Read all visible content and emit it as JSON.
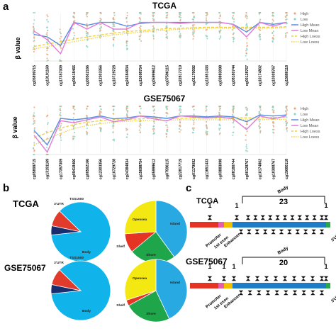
{
  "panel_labels": {
    "a": "a",
    "b": "b",
    "c": "c"
  },
  "panel_a": {
    "ylabel": "β value",
    "probes": [
      "cg05899715",
      "cg13191169",
      "cg17357309",
      "cg09418466",
      "cg00502166",
      "cg12303356",
      "cg10729728",
      "cg24384834",
      "cg15698754",
      "cg05999612",
      "cg07596115",
      "cg22817719",
      "cg01179092",
      "cg11651433",
      "cg03883098",
      "cg08180744",
      "cg00128767",
      "cg10174802",
      "cg10308767",
      "cg15680118"
    ],
    "colors": {
      "high": "#f0a070",
      "low": "#7fd4c4",
      "high_mean": "#5a8ee0",
      "low_mean": "#e07ad8",
      "high_loess": "#f0d040",
      "low_loess": "#f0d040"
    },
    "legend": [
      "High",
      "Low",
      "High Mean",
      "Low Mean",
      "High Loess",
      "Low Loess"
    ],
    "charts": [
      {
        "title": "TCGA",
        "high_mean": [
          0.55,
          0.5,
          0.32,
          0.8,
          0.74,
          0.8,
          0.8,
          0.72,
          0.78,
          0.8,
          0.8,
          0.8,
          0.8,
          0.8,
          0.8,
          0.76,
          0.6,
          0.8,
          0.76,
          0.8
        ],
        "low_mean": [
          0.62,
          0.44,
          0.15,
          0.8,
          0.66,
          0.8,
          0.66,
          0.66,
          0.8,
          0.8,
          0.8,
          0.78,
          0.8,
          0.8,
          0.8,
          0.76,
          0.5,
          0.8,
          0.72,
          0.8
        ],
        "high_loess": [
          0.3,
          0.35,
          0.4,
          0.45,
          0.5,
          0.54,
          0.58,
          0.61,
          0.63,
          0.65,
          0.67,
          0.68,
          0.69,
          0.7,
          0.7,
          0.7,
          0.7,
          0.7,
          0.7,
          0.71
        ],
        "low_loess": [
          0.25,
          0.3,
          0.35,
          0.4,
          0.45,
          0.5,
          0.54,
          0.57,
          0.6,
          0.62,
          0.64,
          0.66,
          0.67,
          0.68,
          0.68,
          0.68,
          0.68,
          0.68,
          0.68,
          0.69
        ]
      },
      {
        "title": "GSE75067",
        "high_mean": [
          0.5,
          0.2,
          0.75,
          0.72,
          0.75,
          0.8,
          0.74,
          0.76,
          0.8,
          0.78,
          0.75,
          0.8,
          0.8,
          0.78,
          0.8,
          0.78,
          0.68,
          0.82,
          0.8,
          0.82
        ],
        "low_mean": [
          0.4,
          0.05,
          0.7,
          0.66,
          0.72,
          0.78,
          0.68,
          0.72,
          0.8,
          0.74,
          0.7,
          0.8,
          0.78,
          0.76,
          0.78,
          0.74,
          0.52,
          0.8,
          0.74,
          0.8
        ],
        "high_loess": [
          0.35,
          0.45,
          0.55,
          0.62,
          0.67,
          0.7,
          0.72,
          0.73,
          0.74,
          0.75,
          0.75,
          0.75,
          0.76,
          0.76,
          0.76,
          0.76,
          0.76,
          0.76,
          0.77,
          0.77
        ],
        "low_loess": [
          0.2,
          0.32,
          0.44,
          0.54,
          0.6,
          0.64,
          0.67,
          0.69,
          0.7,
          0.71,
          0.71,
          0.72,
          0.72,
          0.72,
          0.72,
          0.72,
          0.72,
          0.72,
          0.73,
          0.73
        ]
      }
    ]
  },
  "panel_b": {
    "rows": [
      {
        "title": "TCGA",
        "gene_pie": [
          {
            "label": "Body",
            "value": 86,
            "color": "#10b4ea"
          },
          {
            "label": "3'UTR",
            "value": 5,
            "color": "#1a2d6e"
          },
          {
            "label": "TSS1500",
            "value": 9,
            "color": "#e13b2b"
          }
        ],
        "island_pie": [
          {
            "label": "Island",
            "value": 40,
            "color": "#29a9e1"
          },
          {
            "label": "Shore",
            "value": 24,
            "color": "#1fa64a"
          },
          {
            "label": "Shelf",
            "value": 10,
            "color": "#e53324"
          },
          {
            "label": "Opensea",
            "value": 26,
            "color": "#f4e813"
          }
        ]
      },
      {
        "title": "GSE75067",
        "gene_pie": [
          {
            "label": "Body",
            "value": 86,
            "color": "#10b4ea"
          },
          {
            "label": "3'UTR",
            "value": 5,
            "color": "#1a2d6e"
          },
          {
            "label": "TSS1500",
            "value": 9,
            "color": "#e13b2b"
          }
        ],
        "island_pie": [
          {
            "label": "Island",
            "value": 43,
            "color": "#29a9e1"
          },
          {
            "label": "Shore",
            "value": 24,
            "color": "#1fa64a"
          },
          {
            "label": "Shelf",
            "value": 3,
            "color": "#e53324"
          },
          {
            "label": "Opensea",
            "value": 30,
            "color": "#f4e813"
          }
        ]
      }
    ],
    "labels_visible": {
      "gene": [
        "Body",
        "3'UTR",
        "TSS1500"
      ],
      "island": [
        "Island",
        "Shore",
        "Shelf",
        "Opensea"
      ]
    }
  },
  "panel_c": {
    "rows": [
      {
        "title": "TCGA",
        "body_label": "Body",
        "body_count": "23",
        "count_left": "1",
        "count_mid": "1",
        "count_right": "1",
        "segments": [
          "Promoter",
          "1st exon",
          "Enhancer",
          "3'UTR"
        ]
      },
      {
        "title": "GSE75067",
        "body_label": "Body",
        "body_count": "20",
        "count_left": "1",
        "count_mid": "1",
        "count_mid2": "1",
        "count_right": "1",
        "segments": [
          "Promoter",
          "1st exon",
          "Enhancer",
          "3'UTR"
        ]
      }
    ],
    "colors": {
      "promoter": "#e53324",
      "exon": "#e75ea8",
      "enhancer": "#f3c000",
      "body": "#1e7bc4",
      "utr": "#27a84a",
      "marker": "#111111"
    }
  }
}
